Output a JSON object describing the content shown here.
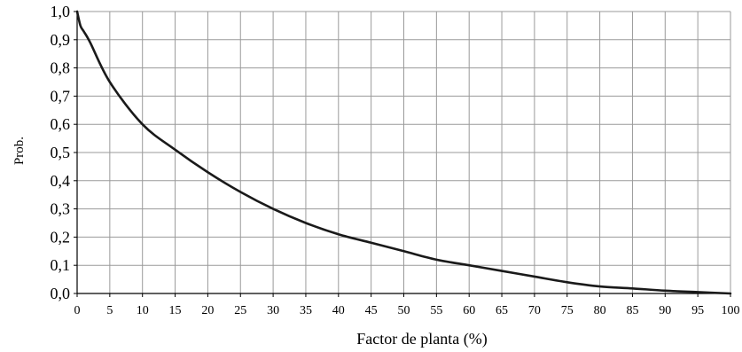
{
  "chart_data": {
    "type": "line",
    "xlabel": "Factor de planta (%)",
    "ylabel": "Prob.",
    "xlim": [
      0,
      100
    ],
    "ylim": [
      0.0,
      1.0
    ],
    "grid": true,
    "x_ticks": [
      "0",
      "5",
      "10",
      "15",
      "20",
      "25",
      "30",
      "35",
      "40",
      "45",
      "50",
      "55",
      "60",
      "65",
      "70",
      "75",
      "80",
      "85",
      "90",
      "95",
      "100"
    ],
    "y_ticks": [
      "0,0",
      "0,1",
      "0,2",
      "0,3",
      "0,4",
      "0,5",
      "0,6",
      "0,7",
      "0,8",
      "0,9",
      "1,0"
    ],
    "series": [
      {
        "x": [
          0,
          0.5,
          1,
          2,
          5,
          10,
          15,
          20,
          25,
          30,
          35,
          40,
          45,
          50,
          55,
          60,
          65,
          70,
          75,
          80,
          85,
          90,
          95,
          100
        ],
        "y": [
          1.0,
          0.95,
          0.93,
          0.89,
          0.75,
          0.6,
          0.51,
          0.43,
          0.36,
          0.3,
          0.25,
          0.21,
          0.18,
          0.15,
          0.12,
          0.1,
          0.08,
          0.06,
          0.04,
          0.025,
          0.018,
          0.01,
          0.005,
          0.0
        ]
      }
    ],
    "colors": {
      "line": "#1a1a1a",
      "grid": "#9a9a9a",
      "axis": "#000000",
      "background": "#ffffff"
    }
  }
}
